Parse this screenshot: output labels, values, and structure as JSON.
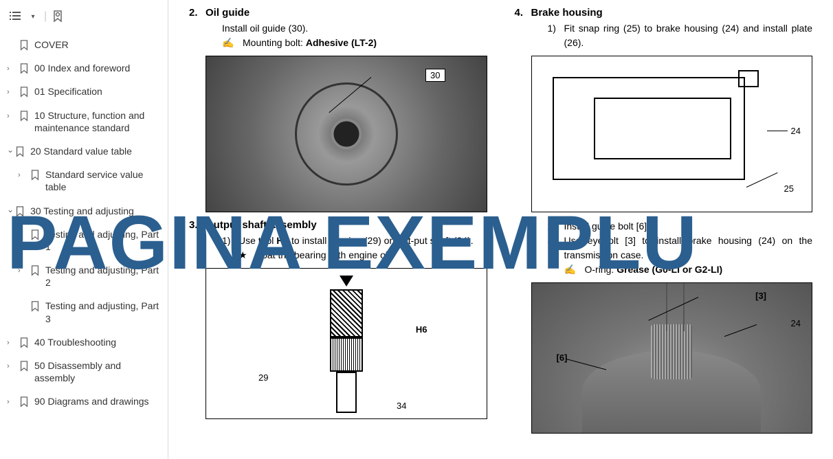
{
  "sidebar": {
    "items": [
      {
        "label": "COVER",
        "chevron": "",
        "indent": 0
      },
      {
        "label": "00 Index and foreword",
        "chevron": "›",
        "indent": 0
      },
      {
        "label": "01 Specification",
        "chevron": "›",
        "indent": 0
      },
      {
        "label": "10 Structure, function and maintenance standard",
        "chevron": "›",
        "indent": 0
      },
      {
        "label": "20 Standard value table",
        "chevron": "⌄",
        "indent": 0,
        "check": true
      },
      {
        "label": "Standard service value table",
        "chevron": "›",
        "indent": 1
      },
      {
        "label": "30 Testing and adjusting",
        "chevron": "⌄",
        "indent": 0,
        "check": true
      },
      {
        "label": "Testing and adjusting, Part 1",
        "chevron": "›",
        "indent": 1
      },
      {
        "label": "Testing and adjusting, Part 2",
        "chevron": "›",
        "indent": 1
      },
      {
        "label": "Testing and adjusting, Part 3",
        "chevron": "",
        "indent": 1
      },
      {
        "label": "40 Troubleshooting",
        "chevron": "›",
        "indent": 0
      },
      {
        "label": "50 Disassembly and assembly",
        "chevron": "›",
        "indent": 0
      },
      {
        "label": "90 Diagrams and drawings",
        "chevron": "›",
        "indent": 0
      }
    ]
  },
  "left_col": {
    "s1_num": "2.",
    "s1_title": "Oil guide",
    "s1_text": "Install oil guide (30).",
    "s1_note_label": "Mounting bolt: ",
    "s1_note_bold": "Adhesive (LT-2)",
    "fig1_callout": "30",
    "s2_num": "3.",
    "s2_title": "Output shaft assembly",
    "s2_sub_num": "1)",
    "s2_sub_text_a": "Use tool ",
    "s2_sub_text_b": "H6",
    "s2_sub_text_c": " to install bearing (29) on out-put shaft (34).",
    "s2_star": "★",
    "s2_star_text": "Coat the bearing with engine oil.",
    "fig2_label_h6": "H6",
    "fig2_label_29": "29",
    "fig2_label_34": "34"
  },
  "right_col": {
    "s1_num": "4.",
    "s1_title": "Brake housing",
    "s1_sub_num": "1)",
    "s1_sub_text": "Fit snap ring (25) to brake housing (24) and install plate (26).",
    "fig1_label_24": "24",
    "fig1_label_25": "25",
    "s2_sub2_num": "2)",
    "s2_sub2_text": "Install guide bolt [6].",
    "s2_sub3_num": "3)",
    "s2_sub3_text": "Use eyebolt [3] to install brake housing (24) on the transmission case.",
    "s2_note_label": "O-ring: ",
    "s2_note_bold": "Grease (G0-LI or G2-LI)",
    "fig2_label_3": "[3]",
    "fig2_label_6": "[6]",
    "fig2_label_24": "24"
  },
  "watermark": "PAGINA EXEMPLU",
  "colors": {
    "watermark": "#2b5f8f",
    "text": "#333333",
    "border": "#000000"
  }
}
